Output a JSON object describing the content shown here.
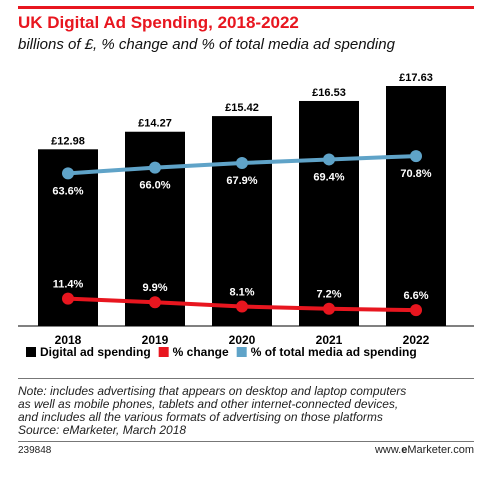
{
  "title": "UK Digital Ad Spending, 2018-2022",
  "subtitle": "billions of £, % change and % of total media ad spending",
  "chart_data": {
    "type": "bar",
    "categories": [
      "2018",
      "2019",
      "2020",
      "2021",
      "2022"
    ],
    "series": [
      {
        "name": "Digital ad spending",
        "type": "bar",
        "values": [
          12.98,
          14.27,
          15.42,
          16.53,
          17.63
        ],
        "labels": [
          "£12.98",
          "£14.27",
          "£15.42",
          "£16.53",
          "£17.63"
        ],
        "color": "#000000"
      },
      {
        "name": "% change",
        "type": "line",
        "values": [
          11.4,
          9.9,
          8.1,
          7.2,
          6.6
        ],
        "labels": [
          "11.4%",
          "9.9%",
          "8.1%",
          "7.2%",
          "6.6%"
        ],
        "color": "#e8161f"
      },
      {
        "name": "% of total media ad spending",
        "type": "line",
        "values": [
          63.6,
          66.0,
          67.9,
          69.4,
          70.8
        ],
        "labels": [
          "63.6%",
          "66.0%",
          "67.9%",
          "69.4%",
          "70.8%"
        ],
        "color": "#5fa3c8"
      }
    ],
    "bar_ylim": [
      0,
      17.63
    ],
    "line_ylim": [
      0,
      100
    ],
    "legend": "bottom"
  },
  "note_lines": [
    "Note: includes advertising that appears on desktop and laptop computers",
    "as well as mobile phones, tablets and other internet-connected devices,",
    "and includes all the various formats of advertising on those platforms",
    "Source: eMarketer, March 2018"
  ],
  "footer": {
    "id": "239848",
    "brand_prefix": "www.",
    "brand_bold": "e",
    "brand_suffix": "Marketer.com"
  }
}
